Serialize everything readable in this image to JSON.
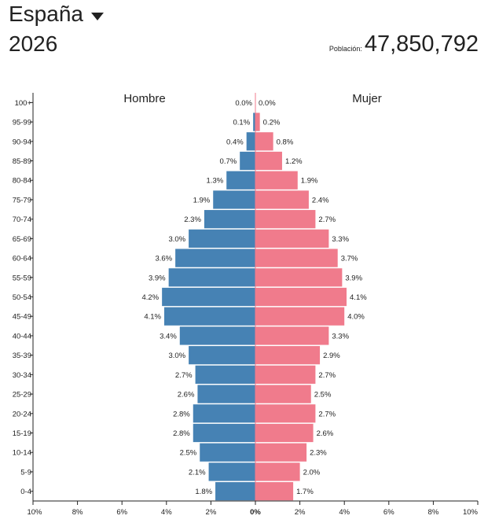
{
  "header": {
    "country": "España",
    "caret_icon": "caret-down-icon",
    "year": "2026",
    "population_label": "Población:",
    "population_value": "47,850,792"
  },
  "colors": {
    "male": "#4682b4",
    "female": "#f07b8c",
    "axis": "#222222",
    "center_line": "#f07b8c"
  },
  "chart_data": {
    "type": "bar",
    "orientation": "horizontal",
    "title": "",
    "xlabel": "",
    "ylabel": "",
    "xlim": [
      -10,
      10
    ],
    "x_ticks": [
      {
        "value": -10,
        "label": "10%"
      },
      {
        "value": -8,
        "label": "8%"
      },
      {
        "value": -6,
        "label": "6%"
      },
      {
        "value": -4,
        "label": "4%"
      },
      {
        "value": -2,
        "label": "2%"
      },
      {
        "value": 0,
        "label": "0%"
      },
      {
        "value": 2,
        "label": "2%"
      },
      {
        "value": 4,
        "label": "4%"
      },
      {
        "value": 6,
        "label": "6%"
      },
      {
        "value": 8,
        "label": "8%"
      },
      {
        "value": 10,
        "label": "10%"
      }
    ],
    "categories": [
      "100+",
      "95-99",
      "90-94",
      "85-89",
      "80-84",
      "75-79",
      "70-74",
      "65-69",
      "60-64",
      "55-59",
      "50-54",
      "45-49",
      "40-44",
      "35-39",
      "30-34",
      "25-29",
      "20-24",
      "15-19",
      "10-14",
      "5-9",
      "0-4"
    ],
    "series": [
      {
        "name": "Hombre",
        "values": [
          0.0,
          0.1,
          0.4,
          0.7,
          1.3,
          1.9,
          2.3,
          3.0,
          3.6,
          3.9,
          4.2,
          4.1,
          3.4,
          3.0,
          2.7,
          2.6,
          2.8,
          2.8,
          2.5,
          2.1,
          1.8
        ],
        "labels": [
          "0.0%",
          "0.1%",
          "0.4%",
          "0.7%",
          "1.3%",
          "1.9%",
          "2.3%",
          "3.0%",
          "3.6%",
          "3.9%",
          "4.2%",
          "4.1%",
          "3.4%",
          "3.0%",
          "2.7%",
          "2.6%",
          "2.8%",
          "2.8%",
          "2.5%",
          "2.1%",
          "1.8%"
        ]
      },
      {
        "name": "Mujer",
        "values": [
          0.0,
          0.2,
          0.8,
          1.2,
          1.9,
          2.4,
          2.7,
          3.3,
          3.7,
          3.9,
          4.1,
          4.0,
          3.3,
          2.9,
          2.7,
          2.5,
          2.7,
          2.6,
          2.3,
          2.0,
          1.7
        ],
        "labels": [
          "0.0%",
          "0.2%",
          "0.8%",
          "1.2%",
          "1.9%",
          "2.4%",
          "2.7%",
          "3.3%",
          "3.7%",
          "3.9%",
          "4.1%",
          "4.0%",
          "3.3%",
          "2.9%",
          "2.7%",
          "2.5%",
          "2.7%",
          "2.6%",
          "2.3%",
          "2.0%",
          "1.7%"
        ]
      }
    ],
    "grid": false,
    "legend": "top"
  }
}
